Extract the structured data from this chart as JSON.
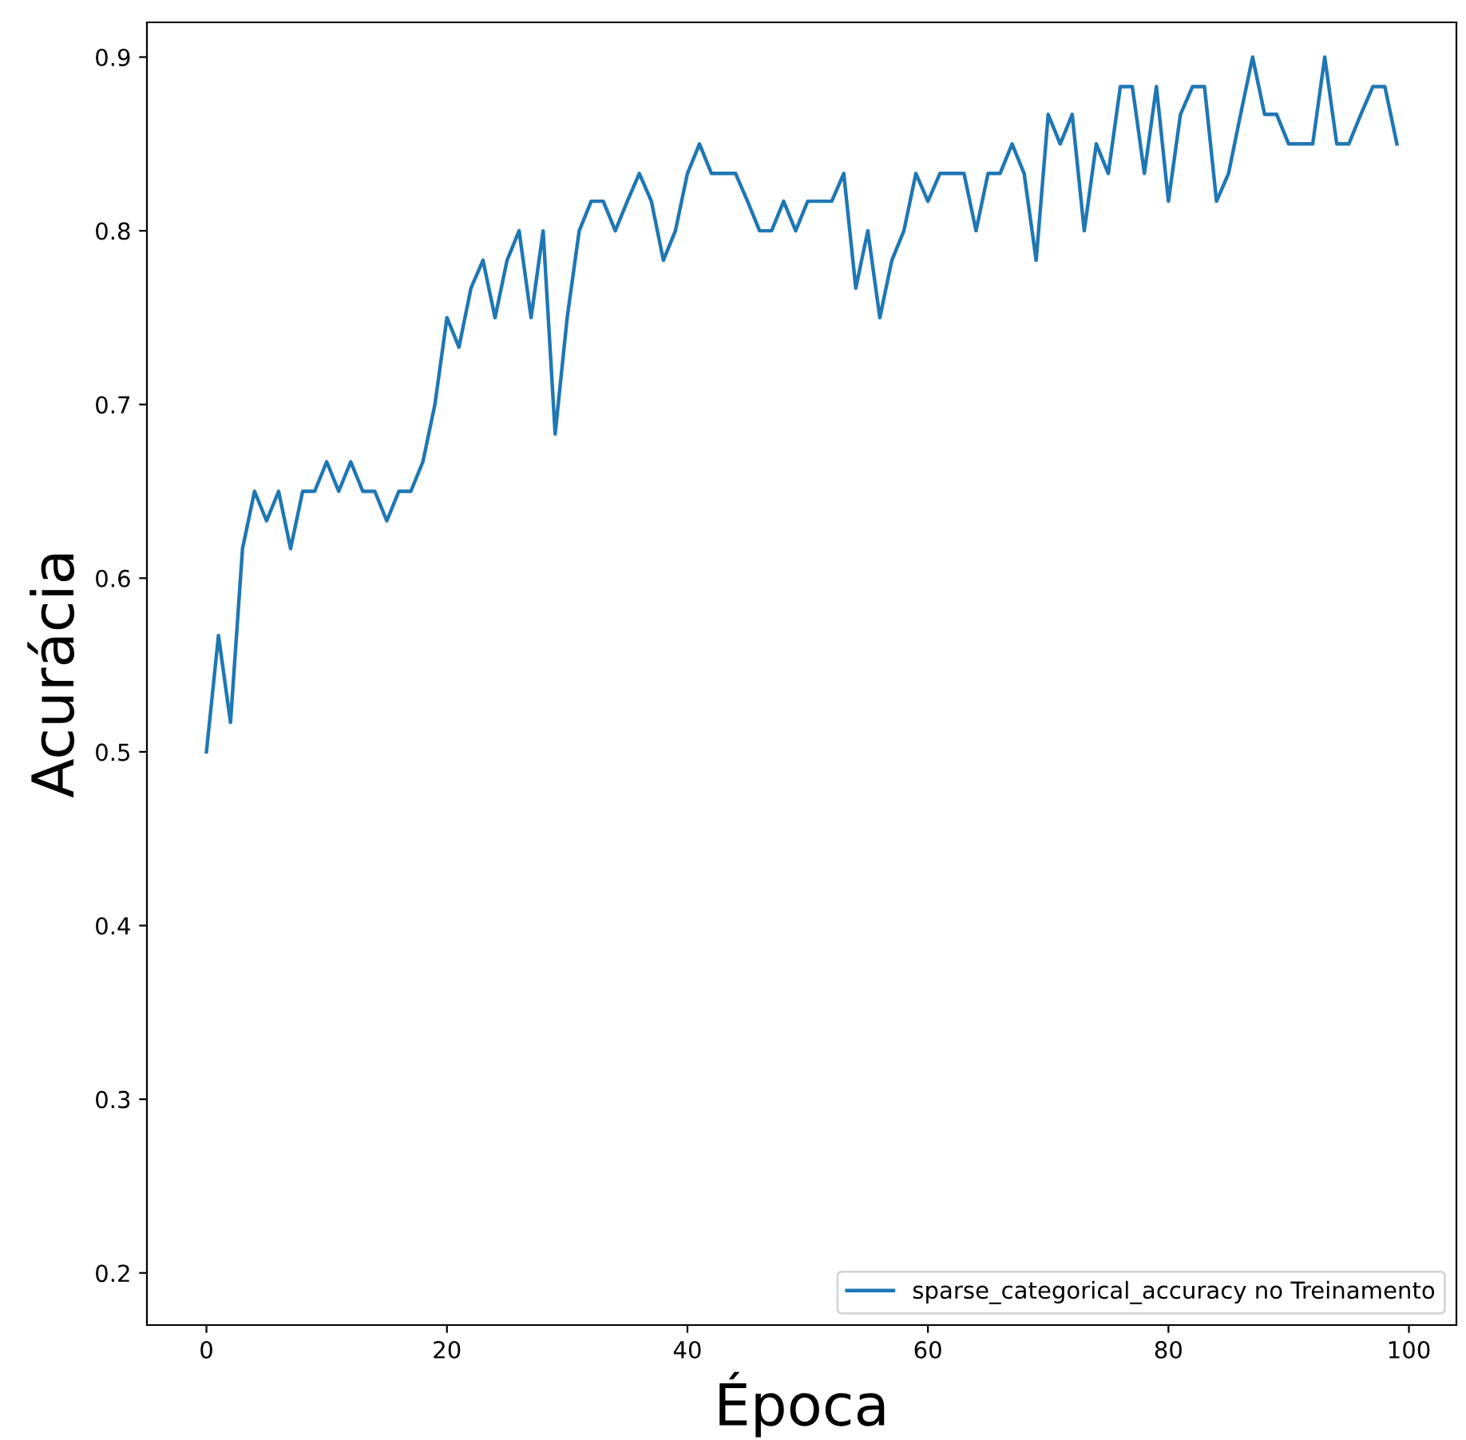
{
  "chart_data": {
    "type": "line",
    "xlabel": "Época",
    "ylabel": "Acurácia",
    "x": [
      0,
      1,
      2,
      3,
      4,
      5,
      6,
      7,
      8,
      9,
      10,
      11,
      12,
      13,
      14,
      15,
      16,
      17,
      18,
      19,
      20,
      21,
      22,
      23,
      24,
      25,
      26,
      27,
      28,
      29,
      30,
      31,
      32,
      33,
      34,
      35,
      36,
      37,
      38,
      39,
      40,
      41,
      42,
      43,
      44,
      45,
      46,
      47,
      48,
      49,
      50,
      51,
      52,
      53,
      54,
      55,
      56,
      57,
      58,
      59,
      60,
      61,
      62,
      63,
      64,
      65,
      66,
      67,
      68,
      69,
      70,
      71,
      72,
      73,
      74,
      75,
      76,
      77,
      78,
      79,
      80,
      81,
      82,
      83,
      84,
      85,
      86,
      87,
      88,
      89,
      90,
      91,
      92,
      93,
      94,
      95,
      96,
      97,
      98,
      99
    ],
    "series": [
      {
        "name": "sparse_categorical_accuracy no Treinamento",
        "color": "#1f77b4",
        "values": [
          0.5,
          0.567,
          0.517,
          0.617,
          0.65,
          0.633,
          0.65,
          0.617,
          0.65,
          0.65,
          0.667,
          0.65,
          0.667,
          0.65,
          0.65,
          0.633,
          0.65,
          0.65,
          0.667,
          0.7,
          0.75,
          0.733,
          0.767,
          0.783,
          0.75,
          0.783,
          0.8,
          0.75,
          0.8,
          0.683,
          0.75,
          0.8,
          0.817,
          0.817,
          0.8,
          0.817,
          0.833,
          0.817,
          0.783,
          0.8,
          0.833,
          0.85,
          0.833,
          0.833,
          0.833,
          0.817,
          0.8,
          0.8,
          0.817,
          0.8,
          0.817,
          0.817,
          0.817,
          0.833,
          0.767,
          0.8,
          0.75,
          0.783,
          0.8,
          0.833,
          0.817,
          0.833,
          0.833,
          0.833,
          0.8,
          0.833,
          0.833,
          0.85,
          0.833,
          0.783,
          0.867,
          0.85,
          0.867,
          0.8,
          0.85,
          0.833,
          0.883,
          0.883,
          0.833,
          0.883,
          0.817,
          0.867,
          0.883,
          0.883,
          0.817,
          0.833,
          0.867,
          0.9,
          0.867,
          0.867,
          0.85,
          0.85,
          0.85,
          0.9,
          0.85,
          0.85,
          0.867,
          0.883,
          0.883,
          0.85
        ]
      }
    ],
    "xlim": [
      -4.95,
      103.95
    ],
    "ylim": [
      0.17,
      0.92
    ],
    "xticks": [
      0,
      20,
      40,
      60,
      80,
      100
    ],
    "yticks": [
      0.2,
      0.3,
      0.4,
      0.5,
      0.6,
      0.7,
      0.8,
      0.9
    ],
    "grid": false,
    "legend": "bottom right",
    "line_style": "solid",
    "marker": "none"
  }
}
